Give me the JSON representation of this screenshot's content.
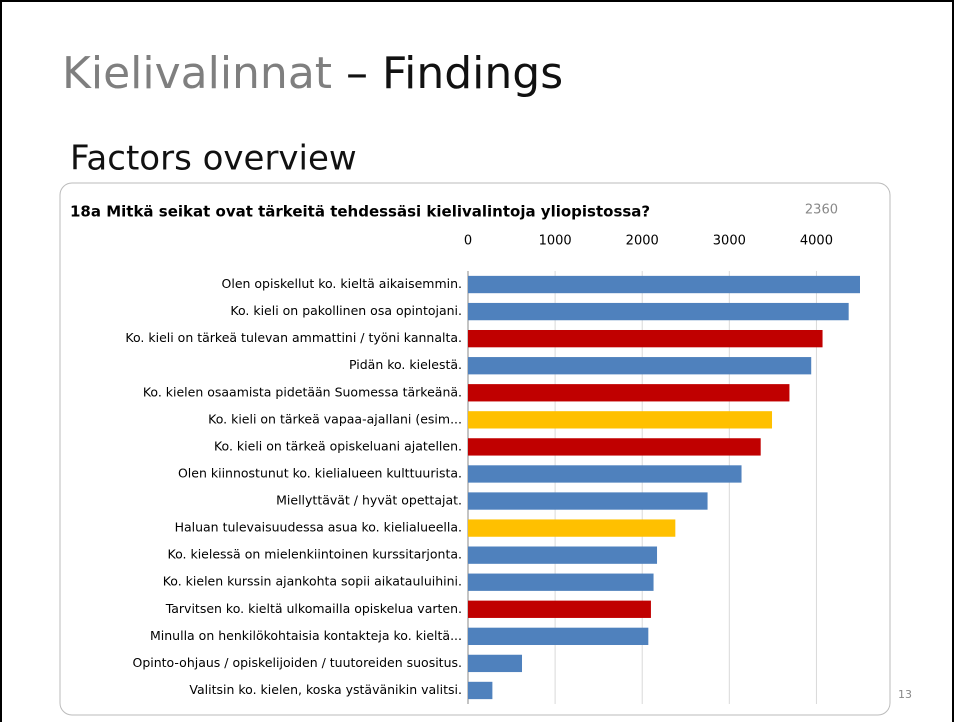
{
  "slide": {
    "title_main": "Kielivalinnat",
    "title_rest": "– Findings",
    "subtitle": "Factors overview",
    "page_number": "13"
  },
  "chart_data": {
    "type": "bar",
    "orientation": "horizontal",
    "title": "18a Mitkä seikat ovat tärkeitä tehdessäsi kielivalintoja yliopistossa?",
    "annotation": "2360",
    "categories": [
      "Olen opiskellut ko. kieltä aikaisemmin.",
      "Ko. kieli on pakollinen osa opintojani.",
      "Ko. kieli on tärkeä tulevan ammattini / työni kannalta.",
      "Pidän ko. kielestä.",
      "Ko. kielen osaamista pidetään Suomessa tärkeänä.",
      "Ko. kieli on tärkeä vapaa-ajallani (esim...",
      "Ko. kieli on tärkeä opiskeluani ajatellen.",
      "Olen kiinnostunut ko. kielialueen kulttuurista.",
      "Miellyttävät / hyvät opettajat.",
      "Haluan tulevaisuudessa asua ko. kielialueella.",
      "Ko. kielessä on mielenkiintoinen kurssitarjonta.",
      "Ko. kielen kurssin ajankohta sopii aikatauluihini.",
      "Tarvitsen ko. kieltä ulkomailla opiskelua varten.",
      "Minulla on henkilökohtaisia kontakteja ko. kieltä...",
      "Opinto-ohjaus / opiskelijoiden / tuutoreiden suositus.",
      "Valitsin ko. kielen, koska ystävänikin valitsi."
    ],
    "values": [
      4500,
      4370,
      4070,
      3940,
      3690,
      3490,
      3360,
      3140,
      2750,
      2380,
      2170,
      2130,
      2100,
      2070,
      620,
      280
    ],
    "colors": [
      "#4f81bd",
      "#4f81bd",
      "#c00000",
      "#4f81bd",
      "#c00000",
      "#ffc000",
      "#c00000",
      "#4f81bd",
      "#4f81bd",
      "#ffc000",
      "#4f81bd",
      "#4f81bd",
      "#c00000",
      "#4f81bd",
      "#4f81bd",
      "#4f81bd"
    ],
    "xlim": [
      0,
      4500
    ],
    "xticks": [
      0,
      1000,
      2000,
      3000,
      4000
    ],
    "grid": true
  }
}
